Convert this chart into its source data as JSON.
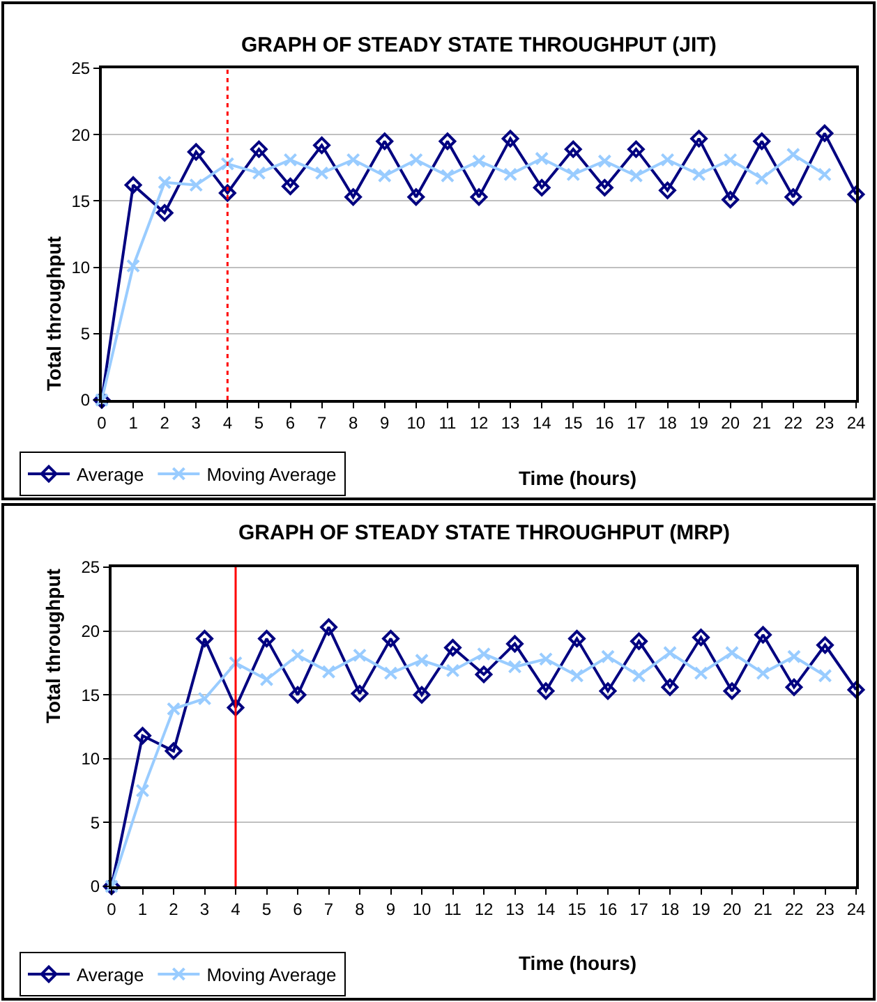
{
  "chart_data": [
    {
      "type": "line",
      "title": "GRAPH OF STEADY STATE THROUGHPUT (JIT)",
      "xlabel": "Time (hours)",
      "ylabel": "Total throughput",
      "x": [
        0,
        1,
        2,
        3,
        4,
        5,
        6,
        7,
        8,
        9,
        10,
        11,
        12,
        13,
        14,
        15,
        16,
        17,
        18,
        19,
        20,
        21,
        22,
        23,
        24
      ],
      "series": [
        {
          "name": "Average",
          "color": "#000080",
          "marker": "diamond",
          "values": [
            0,
            16.2,
            14.1,
            18.7,
            15.6,
            18.9,
            16.1,
            19.2,
            15.3,
            19.5,
            15.3,
            19.5,
            15.3,
            19.7,
            16.0,
            18.9,
            16.0,
            18.9,
            15.8,
            19.7,
            15.1,
            19.5,
            15.3,
            20.1,
            15.5
          ]
        },
        {
          "name": "Moving Average",
          "color": "#99ccff",
          "marker": "cross",
          "values": [
            0,
            10.1,
            16.4,
            16.2,
            17.8,
            17.1,
            18.1,
            17.1,
            18.1,
            16.9,
            18.1,
            16.9,
            18.0,
            17.0,
            18.2,
            17.0,
            18.0,
            16.9,
            18.1,
            17.0,
            18.1,
            16.7,
            18.5,
            17.0,
            null
          ]
        }
      ],
      "xlim": [
        0,
        24
      ],
      "xticks": [
        0,
        1,
        2,
        3,
        4,
        5,
        6,
        7,
        8,
        9,
        10,
        11,
        12,
        13,
        14,
        15,
        16,
        17,
        18,
        19,
        20,
        21,
        22,
        23,
        24
      ],
      "ylim": [
        0,
        25
      ],
      "yticks": [
        0,
        5,
        10,
        15,
        20,
        25
      ],
      "grid": "y",
      "legend": "bottom left",
      "line_style": "solid",
      "ref_lines": [
        {
          "axis": "x",
          "value": 4,
          "color": "#ff0000",
          "line_style": "dotted"
        }
      ]
    },
    {
      "type": "line",
      "title": "GRAPH OF STEADY STATE THROUGHPUT (MRP)",
      "xlabel": "Time (hours)",
      "ylabel": "Total throughput",
      "x": [
        0,
        1,
        2,
        3,
        4,
        5,
        6,
        7,
        8,
        9,
        10,
        11,
        12,
        13,
        14,
        15,
        16,
        17,
        18,
        19,
        20,
        21,
        22,
        23,
        24
      ],
      "series": [
        {
          "name": "Average",
          "color": "#000080",
          "marker": "diamond",
          "values": [
            0,
            11.8,
            10.6,
            19.4,
            14.0,
            19.4,
            15.0,
            20.3,
            15.1,
            19.4,
            15.0,
            18.7,
            16.6,
            19.0,
            15.3,
            19.4,
            15.3,
            19.2,
            15.6,
            19.5,
            15.3,
            19.7,
            15.6,
            18.9,
            15.4
          ]
        },
        {
          "name": "Moving Average",
          "color": "#99ccff",
          "marker": "cross",
          "values": [
            0,
            7.5,
            13.9,
            14.7,
            17.5,
            16.2,
            18.1,
            16.8,
            18.1,
            16.7,
            17.7,
            16.9,
            18.2,
            17.2,
            17.8,
            16.5,
            18.0,
            16.5,
            18.3,
            16.7,
            18.3,
            16.7,
            18.0,
            16.5,
            null
          ]
        }
      ],
      "xlim": [
        0,
        24
      ],
      "xticks": [
        0,
        1,
        2,
        3,
        4,
        5,
        6,
        7,
        8,
        9,
        10,
        11,
        12,
        13,
        14,
        15,
        16,
        17,
        18,
        19,
        20,
        21,
        22,
        23,
        24
      ],
      "ylim": [
        0,
        25
      ],
      "yticks": [
        0,
        5,
        10,
        15,
        20,
        25
      ],
      "grid": "y",
      "legend": "bottom left",
      "line_style": "solid",
      "ref_lines": [
        {
          "axis": "x",
          "value": 4,
          "color": "#ff0000",
          "line_style": "solid"
        }
      ]
    }
  ]
}
